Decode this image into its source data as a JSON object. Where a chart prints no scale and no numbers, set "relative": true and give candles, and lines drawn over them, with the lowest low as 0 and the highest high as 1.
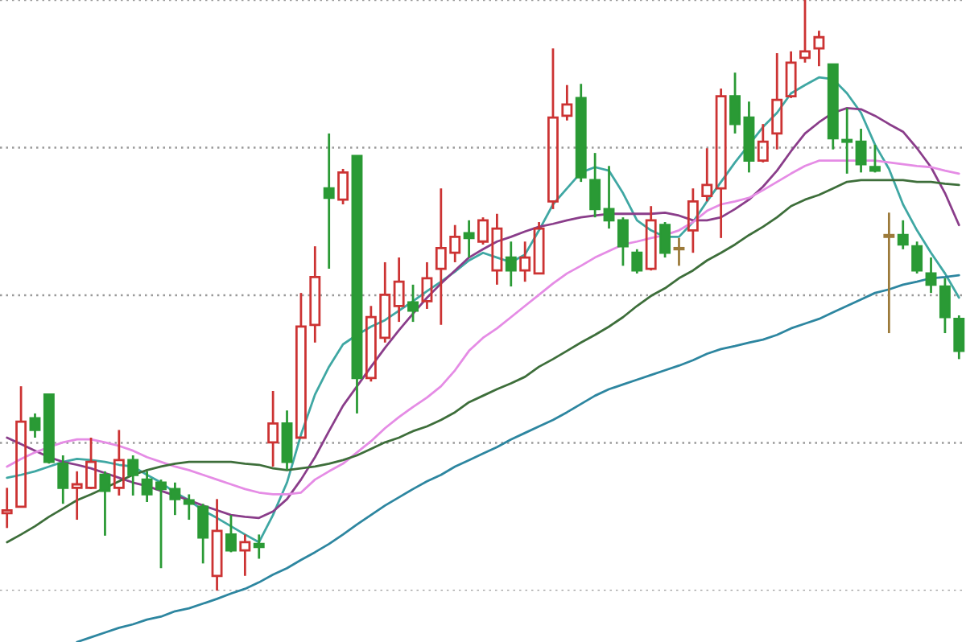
{
  "chart_data": {
    "type": "candlestick",
    "relative": true,
    "tick_labels": false,
    "grid": "y",
    "categories": [
      null,
      null,
      null,
      null,
      null,
      null,
      null,
      null,
      null,
      null,
      null,
      null,
      null,
      null,
      null,
      null,
      null,
      null,
      null,
      null,
      null,
      null,
      null,
      null,
      null,
      null,
      null,
      null,
      null,
      null,
      null,
      null,
      null,
      null,
      null,
      null,
      null,
      null,
      null,
      null,
      null,
      null,
      null,
      null,
      null,
      null,
      null,
      null,
      null,
      null,
      null,
      null,
      null,
      null,
      null,
      null,
      null,
      null,
      null,
      null,
      null,
      null,
      null,
      null,
      null,
      null,
      null,
      null,
      null
    ],
    "ohlc": [
      [
        0.131,
        0.174,
        0.106,
        0.136
      ],
      [
        0.142,
        0.346,
        0.142,
        0.286
      ],
      [
        0.292,
        0.3,
        0.259,
        0.272
      ],
      [
        0.332,
        0.332,
        0.215,
        0.218
      ],
      [
        0.215,
        0.229,
        0.147,
        0.174
      ],
      [
        0.174,
        0.202,
        0.12,
        0.18
      ],
      [
        0.174,
        0.259,
        0.172,
        0.218
      ],
      [
        0.196,
        0.202,
        0.093,
        0.169
      ],
      [
        0.174,
        0.272,
        0.161,
        0.221
      ],
      [
        0.221,
        0.229,
        0.161,
        0.196
      ],
      [
        0.188,
        0.202,
        0.15,
        0.163
      ],
      [
        0.183,
        0.188,
        0.038,
        0.172
      ],
      [
        0.172,
        0.183,
        0.128,
        0.155
      ],
      [
        0.153,
        0.163,
        0.12,
        0.147
      ],
      [
        0.142,
        0.147,
        0.046,
        0.09
      ],
      [
        0.025,
        0.155,
        0,
        0.101
      ],
      [
        0.095,
        0.128,
        0.065,
        0.068
      ],
      [
        0.068,
        0.095,
        0.025,
        0.082
      ],
      [
        0.079,
        0.095,
        0.054,
        0.074
      ],
      [
        0.251,
        0.338,
        0.21,
        0.283
      ],
      [
        0.283,
        0.305,
        0.204,
        0.218
      ],
      [
        0.259,
        0.504,
        0.259,
        0.447
      ],
      [
        0.45,
        0.583,
        0.42,
        0.531
      ],
      [
        0.681,
        0.774,
        0.545,
        0.665
      ],
      [
        0.662,
        0.714,
        0.654,
        0.708
      ],
      [
        0.736,
        0.736,
        0.3,
        0.36
      ],
      [
        0.36,
        0.482,
        0.354,
        0.463
      ],
      [
        0.428,
        0.556,
        0.42,
        0.501
      ],
      [
        0.482,
        0.564,
        0.455,
        0.523
      ],
      [
        0.488,
        0.518,
        0.455,
        0.474
      ],
      [
        0.49,
        0.556,
        0.477,
        0.529
      ],
      [
        0.545,
        0.681,
        0.45,
        0.58
      ],
      [
        0.572,
        0.619,
        0.556,
        0.599
      ],
      [
        0.605,
        0.627,
        0.564,
        0.597
      ],
      [
        0.591,
        0.632,
        0.586,
        0.627
      ],
      [
        0.542,
        0.638,
        0.518,
        0.613
      ],
      [
        0.564,
        0.591,
        0.515,
        0.542
      ],
      [
        0.542,
        0.591,
        0.523,
        0.564
      ],
      [
        0.537,
        0.624,
        0.537,
        0.613
      ],
      [
        0.659,
        0.918,
        0.646,
        0.801
      ],
      [
        0.804,
        0.856,
        0.796,
        0.823
      ],
      [
        0.834,
        0.858,
        0.692,
        0.7
      ],
      [
        0.695,
        0.741,
        0.632,
        0.646
      ],
      [
        0.646,
        0.719,
        0.613,
        0.627
      ],
      [
        0.627,
        0.632,
        0.55,
        0.583
      ],
      [
        0.572,
        0.578,
        0.537,
        0.542
      ],
      [
        0.545,
        0.651,
        0.542,
        0.627
      ],
      [
        0.619,
        0.624,
        0.564,
        0.572
      ],
      [
        0.58,
        0.597,
        0.55,
        0.578
      ],
      [
        0.61,
        0.681,
        0.572,
        0.659
      ],
      [
        0.668,
        0.749,
        0.659,
        0.687
      ],
      [
        0.681,
        0.85,
        0.597,
        0.837
      ],
      [
        0.837,
        0.877,
        0.774,
        0.79
      ],
      [
        0.801,
        0.828,
        0.708,
        0.728
      ],
      [
        0.728,
        0.79,
        0.725,
        0.76
      ],
      [
        0.774,
        0.91,
        0.747,
        0.831
      ],
      [
        0.837,
        0.913,
        0.834,
        0.894
      ],
      [
        0.902,
        1,
        0.894,
        0.913
      ],
      [
        0.918,
        0.948,
        0.888,
        0.937
      ],
      [
        0.891,
        0.891,
        0.747,
        0.766
      ],
      [
        0.763,
        0.817,
        0.706,
        0.76
      ],
      [
        0.76,
        0.782,
        0.708,
        0.722
      ],
      [
        0.717,
        0.755,
        0.708,
        0.711
      ],
      [
        0.602,
        0.64,
        0.436,
        0.599
      ],
      [
        0.602,
        0.627,
        0.578,
        0.586
      ],
      [
        0.583,
        0.591,
        0.537,
        0.542
      ],
      [
        0.537,
        0.564,
        0.504,
        0.518
      ],
      [
        0.515,
        0.529,
        0.436,
        0.463
      ],
      [
        0.46,
        0.466,
        0.392,
        0.406
      ]
    ],
    "colors": [
      "#cc3333",
      "#cc3333",
      "#2a9a35",
      "#2a9a35",
      "#2a9a35",
      "#cc3333",
      "#cc3333",
      "#2a9a35",
      "#cc3333",
      "#2a9a35",
      "#2a9a35",
      "#2a9a35",
      "#2a9a35",
      "#2a9a35",
      "#2a9a35",
      "#cc3333",
      "#2a9a35",
      "#cc3333",
      "#2a9a35",
      "#cc3333",
      "#2a9a35",
      "#cc3333",
      "#cc3333",
      "#2a9a35",
      "#cc3333",
      "#2a9a35",
      "#cc3333",
      "#cc3333",
      "#cc3333",
      "#2a9a35",
      "#cc3333",
      "#cc3333",
      "#cc3333",
      "#2a9a35",
      "#cc3333",
      "#cc3333",
      "#2a9a35",
      "#cc3333",
      "#cc3333",
      "#cc3333",
      "#cc3333",
      "#2a9a35",
      "#2a9a35",
      "#2a9a35",
      "#2a9a35",
      "#2a9a35",
      "#cc3333",
      "#2a9a35",
      "#9c7a3a",
      "#cc3333",
      "#cc3333",
      "#cc3333",
      "#2a9a35",
      "#2a9a35",
      "#cc3333",
      "#cc3333",
      "#cc3333",
      "#cc3333",
      "#cc3333",
      "#2a9a35",
      "#2a9a35",
      "#2a9a35",
      "#2a9a35",
      "#9c7a3a",
      "#2a9a35",
      "#2a9a35",
      "#2a9a35",
      "#2a9a35",
      "#2a9a35"
    ],
    "series": [
      {
        "type": "line",
        "color": "#3fa7a3",
        "values": [
          0.191,
          0.196,
          0.202,
          0.21,
          0.218,
          0.223,
          0.221,
          0.218,
          0.213,
          0.21,
          0.196,
          0.183,
          0.166,
          0.153,
          0.136,
          0.123,
          0.109,
          0.095,
          0.082,
          0.128,
          0.183,
          0.264,
          0.332,
          0.379,
          0.417,
          0.433,
          0.447,
          0.458,
          0.474,
          0.49,
          0.507,
          0.523,
          0.54,
          0.559,
          0.572,
          0.564,
          0.556,
          0.569,
          0.61,
          0.654,
          0.681,
          0.708,
          0.717,
          0.711,
          0.673,
          0.627,
          0.61,
          0.599,
          0.599,
          0.624,
          0.659,
          0.692,
          0.725,
          0.755,
          0.785,
          0.809,
          0.842,
          0.856,
          0.869,
          0.866,
          0.842,
          0.809,
          0.755,
          0.714,
          0.654,
          0.61,
          0.572,
          0.537,
          0.496
        ]
      },
      {
        "type": "line",
        "color": "#8a3d8a",
        "values": [
          0.259,
          0.248,
          0.237,
          0.226,
          0.218,
          0.213,
          0.207,
          0.199,
          0.191,
          0.183,
          0.177,
          0.169,
          0.161,
          0.153,
          0.144,
          0.136,
          0.128,
          0.125,
          0.123,
          0.134,
          0.155,
          0.188,
          0.226,
          0.27,
          0.313,
          0.346,
          0.379,
          0.411,
          0.441,
          0.469,
          0.496,
          0.52,
          0.542,
          0.564,
          0.578,
          0.591,
          0.599,
          0.608,
          0.616,
          0.621,
          0.627,
          0.632,
          0.635,
          0.638,
          0.638,
          0.638,
          0.638,
          0.64,
          0.635,
          0.627,
          0.627,
          0.632,
          0.646,
          0.662,
          0.684,
          0.711,
          0.744,
          0.774,
          0.793,
          0.809,
          0.817,
          0.815,
          0.804,
          0.79,
          0.777,
          0.749,
          0.717,
          0.673,
          0.619
        ]
      },
      {
        "type": "line",
        "color": "#e58ce5",
        "values": [
          0.21,
          0.223,
          0.234,
          0.243,
          0.251,
          0.256,
          0.256,
          0.251,
          0.245,
          0.237,
          0.226,
          0.218,
          0.21,
          0.204,
          0.196,
          0.188,
          0.18,
          0.172,
          0.166,
          0.163,
          0.163,
          0.166,
          0.188,
          0.202,
          0.215,
          0.234,
          0.253,
          0.275,
          0.294,
          0.311,
          0.327,
          0.346,
          0.373,
          0.406,
          0.428,
          0.444,
          0.463,
          0.482,
          0.501,
          0.52,
          0.537,
          0.55,
          0.564,
          0.575,
          0.586,
          0.591,
          0.597,
          0.602,
          0.61,
          0.624,
          0.643,
          0.654,
          0.659,
          0.665,
          0.678,
          0.692,
          0.706,
          0.719,
          0.728,
          0.728,
          0.728,
          0.728,
          0.728,
          0.725,
          0.722,
          0.719,
          0.717,
          0.711,
          0.706
        ]
      },
      {
        "type": "line",
        "color": "#3d6e3a",
        "values": [
          0.082,
          0.095,
          0.109,
          0.125,
          0.139,
          0.153,
          0.163,
          0.174,
          0.185,
          0.196,
          0.204,
          0.21,
          0.215,
          0.218,
          0.218,
          0.218,
          0.218,
          0.215,
          0.213,
          0.207,
          0.204,
          0.207,
          0.21,
          0.215,
          0.221,
          0.229,
          0.24,
          0.251,
          0.259,
          0.27,
          0.278,
          0.289,
          0.302,
          0.319,
          0.33,
          0.341,
          0.351,
          0.362,
          0.379,
          0.392,
          0.406,
          0.42,
          0.433,
          0.447,
          0.463,
          0.482,
          0.499,
          0.512,
          0.529,
          0.542,
          0.559,
          0.572,
          0.586,
          0.602,
          0.616,
          0.632,
          0.651,
          0.662,
          0.67,
          0.681,
          0.692,
          0.695,
          0.695,
          0.695,
          0.695,
          0.692,
          0.692,
          0.689,
          0.687
        ]
      },
      {
        "type": "line",
        "color": "#2d86a0",
        "values": [
          null,
          null,
          null,
          null,
          null,
          -0.087,
          -0.079,
          -0.071,
          -0.063,
          -0.057,
          -0.049,
          -0.044,
          -0.035,
          -0.03,
          -0.022,
          -0.014,
          -0.005,
          0.003,
          0.014,
          0.027,
          0.038,
          0.052,
          0.065,
          0.079,
          0.095,
          0.112,
          0.128,
          0.144,
          0.158,
          0.172,
          0.185,
          0.196,
          0.21,
          0.221,
          0.232,
          0.243,
          0.256,
          0.267,
          0.278,
          0.289,
          0.302,
          0.316,
          0.33,
          0.341,
          0.349,
          0.357,
          0.365,
          0.373,
          0.381,
          0.39,
          0.401,
          0.409,
          0.414,
          0.42,
          0.425,
          0.433,
          0.444,
          0.452,
          0.46,
          0.471,
          0.482,
          0.493,
          0.504,
          0.51,
          0.518,
          0.523,
          0.529,
          0.531,
          0.534
        ]
      }
    ]
  }
}
